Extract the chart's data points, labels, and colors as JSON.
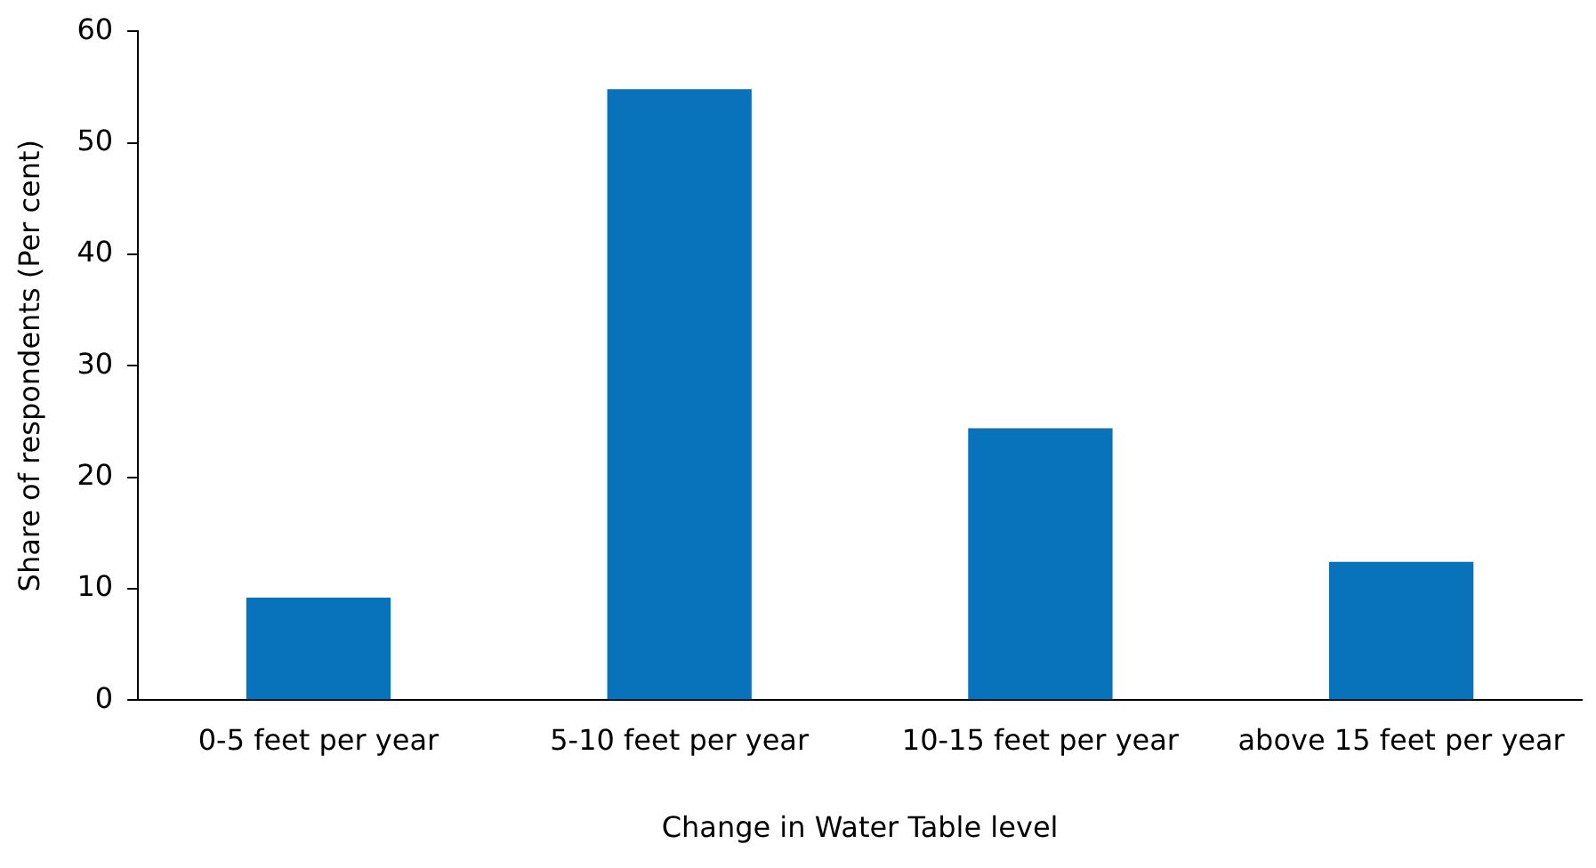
{
  "chart_data": {
    "type": "bar",
    "xlabel": "Change in Water Table level",
    "ylabel": "Share of respondents (Per cent)",
    "categories": [
      "0-5 feet per year",
      "5-10 feet per year",
      "10-15 feet per year",
      "above 15 feet per year"
    ],
    "values": [
      9.2,
      54.8,
      24.4,
      12.4
    ],
    "color": "#0872bb",
    "ylim": [
      0,
      60
    ],
    "yticks": [
      0,
      10,
      20,
      30,
      40,
      50,
      60
    ],
    "grid": false,
    "legend": false
  }
}
